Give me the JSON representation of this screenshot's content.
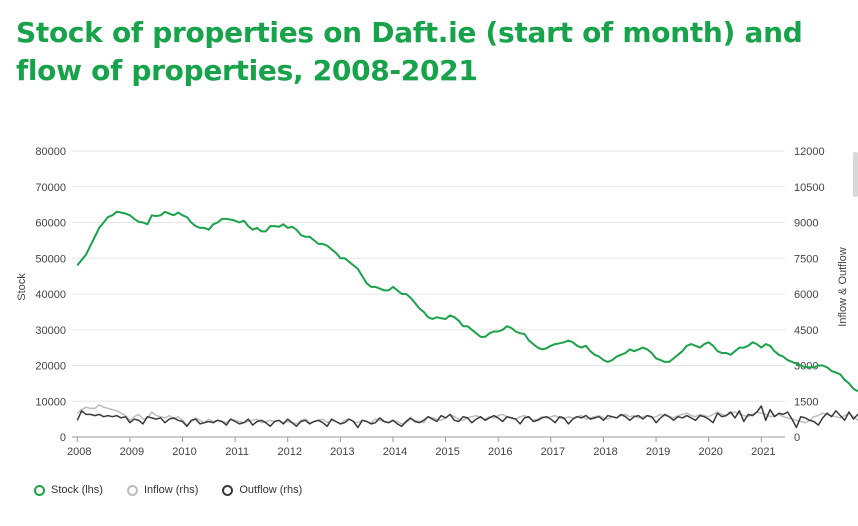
{
  "title": "Stock of properties on Daft.ie (start of month) and flow of properties, 2008-2021",
  "colors": {
    "title": "#16a34a",
    "stock": "#1aa34a",
    "inflow": "#bdbdbd",
    "outflow": "#3a3a3a",
    "grid": "#e5e5e5"
  },
  "chart_data": {
    "type": "line",
    "x_start": 2008.0,
    "x_step_months": 1,
    "xlim": [
      2007.9,
      2021.45
    ],
    "x_ticks": [
      2008,
      2009,
      2010,
      2011,
      2012,
      2013,
      2014,
      2015,
      2016,
      2017,
      2018,
      2019,
      2020,
      2021
    ],
    "ylabel_left": "Stock",
    "ylabel_right": "Inflow & Outflow",
    "ylim_left": [
      0,
      80000
    ],
    "ylim_right": [
      0,
      12000
    ],
    "yticks_left": [
      0,
      10000,
      20000,
      30000,
      40000,
      50000,
      60000,
      70000,
      80000
    ],
    "yticks_right": [
      0,
      1500,
      3000,
      4500,
      6000,
      7500,
      9000,
      10500,
      12000
    ],
    "grid": true,
    "legend_position": "bottom-left",
    "series": [
      {
        "name": "Stock (lhs)",
        "axis": "left",
        "values": [
          48000,
          49500,
          51000,
          53500,
          56000,
          58500,
          60000,
          61500,
          62000,
          63000,
          62800,
          62500,
          62000,
          61000,
          60200,
          60000,
          59500,
          62000,
          61800,
          62000,
          63000,
          62500,
          62000,
          62800,
          62000,
          61500,
          60000,
          59000,
          58500,
          58500,
          58000,
          59500,
          60000,
          61000,
          61000,
          60800,
          60500,
          60000,
          60500,
          59000,
          58000,
          58500,
          57500,
          57500,
          59000,
          59000,
          58800,
          59500,
          58500,
          58800,
          58000,
          56500,
          56000,
          56000,
          55000,
          54000,
          54000,
          53500,
          52500,
          51500,
          50000,
          50000,
          49000,
          48000,
          47000,
          45000,
          43000,
          42000,
          42000,
          41500,
          41000,
          41000,
          42000,
          41000,
          40000,
          40000,
          39000,
          37500,
          36000,
          35000,
          33500,
          33000,
          33500,
          33200,
          33000,
          34000,
          33500,
          32500,
          31000,
          31000,
          30000,
          29000,
          28000,
          28000,
          29000,
          29500,
          29500,
          30000,
          31000,
          30500,
          29500,
          29000,
          28800,
          27000,
          26000,
          25000,
          24500,
          24800,
          25500,
          26000,
          26200,
          26500,
          27000,
          26500,
          25500,
          25000,
          25500,
          24000,
          23000,
          22500,
          21500,
          21000,
          21500,
          22500,
          23000,
          23500,
          24500,
          24000,
          24500,
          25000,
          24500,
          23500,
          22000,
          21500,
          21000,
          21000,
          22000,
          23000,
          24000,
          25500,
          26000,
          25500,
          25000,
          26000,
          26500,
          25500,
          24000,
          23500,
          23500,
          23000,
          24000,
          25000,
          25000,
          25500,
          26500,
          26000,
          25000,
          26000,
          25500,
          24000,
          23000,
          22500,
          21500,
          21000,
          20500,
          20000,
          19500,
          19500,
          19500,
          20000,
          20000,
          19500,
          18500,
          18000,
          17500,
          16000,
          15000,
          13500,
          12800
        ],
        "color": "#1aa34a"
      },
      {
        "name": "Inflow (rhs)",
        "axis": "right",
        "values": [
          1000,
          1150,
          1250,
          1200,
          1200,
          1350,
          1250,
          1200,
          1150,
          1100,
          1000,
          900,
          700,
          850,
          950,
          750,
          800,
          1050,
          900,
          850,
          800,
          900,
          750,
          850,
          700,
          500,
          650,
          800,
          700,
          600,
          750,
          650,
          700,
          650,
          600,
          750,
          700,
          650,
          600,
          650,
          700,
          750,
          600,
          650,
          700,
          650,
          700,
          600,
          650,
          600,
          550,
          700,
          750,
          600,
          650,
          700,
          750,
          600,
          700,
          650,
          550,
          700,
          750,
          650,
          600,
          700,
          650,
          600,
          750,
          700,
          650,
          600,
          700,
          650,
          550,
          600,
          750,
          700,
          650,
          600,
          850,
          800,
          750,
          700,
          800,
          950,
          850,
          750,
          700,
          800,
          850,
          900,
          800,
          750,
          850,
          800,
          900,
          950,
          850,
          800,
          750,
          850,
          900,
          800,
          700,
          750,
          850,
          800,
          850,
          900,
          800,
          750,
          850,
          800,
          850,
          900,
          750,
          800,
          850,
          900,
          800,
          750,
          850,
          800,
          900,
          950,
          850,
          900,
          800,
          850,
          900,
          800,
          850,
          950,
          900,
          850,
          800,
          900,
          950,
          1000,
          900,
          850,
          950,
          900,
          850,
          950,
          1050,
          950,
          900,
          1000,
          1050,
          950,
          900,
          850,
          950,
          1050,
          1000,
          950,
          850,
          900,
          950,
          850,
          800,
          750,
          700,
          650,
          600,
          700,
          850,
          900,
          1000,
          950,
          900,
          850,
          800,
          900,
          1000,
          850,
          700,
          650,
          700,
          600,
          500
        ],
        "color": "#bdbdbd"
      },
      {
        "name": "Outflow (rhs)",
        "axis": "right",
        "values": [
          700,
          1100,
          950,
          950,
          900,
          950,
          850,
          900,
          850,
          900,
          800,
          850,
          600,
          750,
          700,
          550,
          850,
          800,
          750,
          800,
          600,
          750,
          800,
          700,
          650,
          450,
          700,
          750,
          550,
          600,
          650,
          600,
          700,
          650,
          500,
          750,
          650,
          550,
          600,
          750,
          500,
          650,
          700,
          600,
          450,
          650,
          700,
          550,
          750,
          600,
          450,
          650,
          700,
          550,
          650,
          700,
          600,
          450,
          750,
          650,
          550,
          600,
          750,
          650,
          400,
          700,
          650,
          550,
          600,
          800,
          650,
          600,
          700,
          550,
          450,
          650,
          800,
          650,
          600,
          700,
          850,
          750,
          650,
          900,
          800,
          950,
          700,
          650,
          850,
          800,
          600,
          750,
          850,
          700,
          800,
          900,
          800,
          650,
          850,
          800,
          750,
          550,
          800,
          850,
          650,
          700,
          800,
          850,
          750,
          600,
          850,
          800,
          550,
          750,
          850,
          800,
          900,
          750,
          800,
          850,
          700,
          900,
          850,
          800,
          950,
          850,
          700,
          850,
          900,
          750,
          900,
          850,
          600,
          800,
          950,
          850,
          700,
          850,
          800,
          900,
          800,
          700,
          900,
          850,
          750,
          600,
          1000,
          850,
          900,
          1050,
          800,
          1100,
          650,
          950,
          900,
          1050,
          1300,
          700,
          1150,
          850,
          1000,
          950,
          1050,
          750,
          400,
          850,
          800,
          700,
          650,
          500,
          800,
          1000,
          850,
          1100,
          900,
          700,
          1050,
          750,
          950,
          800,
          500,
          800,
          700,
          600,
          650
        ],
        "color": "#3a3a3a"
      }
    ]
  }
}
